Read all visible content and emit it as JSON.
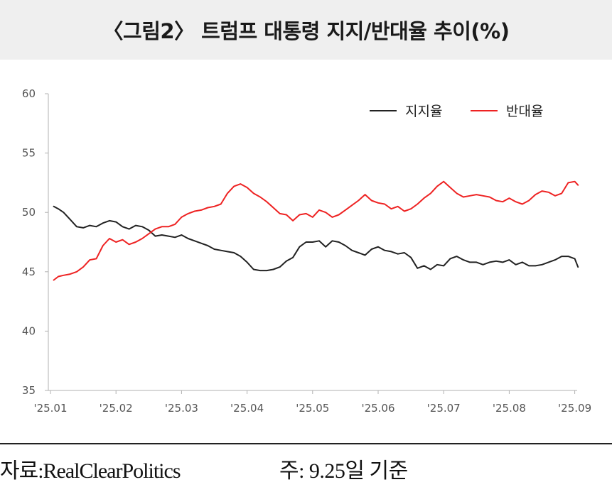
{
  "title": "〈그림2〉 트럼프 대통령 지지/반대율 추이(%)",
  "footer": {
    "source": "자료:RealClearPolitics",
    "note": "주: 9.25일 기준"
  },
  "colors": {
    "approve": "#222222",
    "disapprove": "#ee2222",
    "axis": "#b0b0b0",
    "tick_text": "#555555"
  },
  "chart_data": {
    "type": "line",
    "title": "",
    "xlabel": "",
    "ylabel": "",
    "ylim": [
      35,
      60
    ],
    "yticks": [
      35,
      40,
      45,
      50,
      55,
      60
    ],
    "xticks": [
      "'25.01",
      "'25.02",
      "'25.03",
      "'25.04",
      "'25.05",
      "'25.06",
      "'25.07",
      "'25.08",
      "'25.09"
    ],
    "xlim": [
      0,
      8.05
    ],
    "grid": false,
    "legend_position": "top-right",
    "series": [
      {
        "name": "지지율",
        "color": "#222222",
        "points": [
          [
            0.05,
            50.5
          ],
          [
            0.12,
            50.3
          ],
          [
            0.2,
            50.0
          ],
          [
            0.3,
            49.4
          ],
          [
            0.4,
            48.8
          ],
          [
            0.5,
            48.7
          ],
          [
            0.6,
            48.9
          ],
          [
            0.7,
            48.8
          ],
          [
            0.8,
            49.1
          ],
          [
            0.9,
            49.3
          ],
          [
            1.0,
            49.2
          ],
          [
            1.1,
            48.8
          ],
          [
            1.2,
            48.6
          ],
          [
            1.3,
            48.9
          ],
          [
            1.4,
            48.8
          ],
          [
            1.5,
            48.5
          ],
          [
            1.6,
            48.0
          ],
          [
            1.7,
            48.1
          ],
          [
            1.8,
            48.0
          ],
          [
            1.9,
            47.9
          ],
          [
            2.0,
            48.1
          ],
          [
            2.1,
            47.8
          ],
          [
            2.2,
            47.6
          ],
          [
            2.3,
            47.4
          ],
          [
            2.4,
            47.2
          ],
          [
            2.5,
            46.9
          ],
          [
            2.6,
            46.8
          ],
          [
            2.7,
            46.7
          ],
          [
            2.8,
            46.6
          ],
          [
            2.9,
            46.3
          ],
          [
            3.0,
            45.8
          ],
          [
            3.1,
            45.2
          ],
          [
            3.2,
            45.1
          ],
          [
            3.3,
            45.1
          ],
          [
            3.4,
            45.2
          ],
          [
            3.5,
            45.4
          ],
          [
            3.6,
            45.9
          ],
          [
            3.7,
            46.2
          ],
          [
            3.8,
            47.1
          ],
          [
            3.9,
            47.5
          ],
          [
            4.0,
            47.5
          ],
          [
            4.1,
            47.6
          ],
          [
            4.2,
            47.1
          ],
          [
            4.3,
            47.6
          ],
          [
            4.4,
            47.5
          ],
          [
            4.5,
            47.2
          ],
          [
            4.6,
            46.8
          ],
          [
            4.7,
            46.6
          ],
          [
            4.8,
            46.4
          ],
          [
            4.9,
            46.9
          ],
          [
            5.0,
            47.1
          ],
          [
            5.1,
            46.8
          ],
          [
            5.2,
            46.7
          ],
          [
            5.3,
            46.5
          ],
          [
            5.4,
            46.6
          ],
          [
            5.5,
            46.2
          ],
          [
            5.6,
            45.3
          ],
          [
            5.7,
            45.5
          ],
          [
            5.8,
            45.2
          ],
          [
            5.9,
            45.6
          ],
          [
            6.0,
            45.5
          ],
          [
            6.1,
            46.1
          ],
          [
            6.2,
            46.3
          ],
          [
            6.3,
            46.0
          ],
          [
            6.4,
            45.8
          ],
          [
            6.5,
            45.8
          ],
          [
            6.6,
            45.6
          ],
          [
            6.7,
            45.8
          ],
          [
            6.8,
            45.9
          ],
          [
            6.9,
            45.8
          ],
          [
            7.0,
            46.0
          ],
          [
            7.1,
            45.6
          ],
          [
            7.2,
            45.8
          ],
          [
            7.3,
            45.5
          ],
          [
            7.4,
            45.5
          ],
          [
            7.5,
            45.6
          ],
          [
            7.6,
            45.8
          ],
          [
            7.7,
            46.0
          ],
          [
            7.8,
            46.3
          ],
          [
            7.9,
            46.3
          ],
          [
            8.0,
            46.1
          ],
          [
            8.05,
            45.4
          ]
        ]
      },
      {
        "name": "반대율",
        "color": "#ee2222",
        "points": [
          [
            0.05,
            44.3
          ],
          [
            0.12,
            44.6
          ],
          [
            0.2,
            44.7
          ],
          [
            0.3,
            44.8
          ],
          [
            0.4,
            45.0
          ],
          [
            0.5,
            45.4
          ],
          [
            0.6,
            46.0
          ],
          [
            0.7,
            46.1
          ],
          [
            0.8,
            47.2
          ],
          [
            0.9,
            47.8
          ],
          [
            1.0,
            47.5
          ],
          [
            1.1,
            47.7
          ],
          [
            1.2,
            47.3
          ],
          [
            1.3,
            47.5
          ],
          [
            1.4,
            47.8
          ],
          [
            1.5,
            48.2
          ],
          [
            1.6,
            48.6
          ],
          [
            1.7,
            48.8
          ],
          [
            1.8,
            48.8
          ],
          [
            1.9,
            49.0
          ],
          [
            2.0,
            49.6
          ],
          [
            2.1,
            49.9
          ],
          [
            2.2,
            50.1
          ],
          [
            2.3,
            50.2
          ],
          [
            2.4,
            50.4
          ],
          [
            2.5,
            50.5
          ],
          [
            2.6,
            50.7
          ],
          [
            2.7,
            51.6
          ],
          [
            2.8,
            52.2
          ],
          [
            2.9,
            52.4
          ],
          [
            3.0,
            52.1
          ],
          [
            3.1,
            51.6
          ],
          [
            3.2,
            51.3
          ],
          [
            3.3,
            50.9
          ],
          [
            3.4,
            50.4
          ],
          [
            3.5,
            49.9
          ],
          [
            3.6,
            49.8
          ],
          [
            3.7,
            49.3
          ],
          [
            3.8,
            49.8
          ],
          [
            3.9,
            49.9
          ],
          [
            4.0,
            49.6
          ],
          [
            4.1,
            50.2
          ],
          [
            4.2,
            50.0
          ],
          [
            4.3,
            49.6
          ],
          [
            4.4,
            49.8
          ],
          [
            4.5,
            50.2
          ],
          [
            4.6,
            50.6
          ],
          [
            4.7,
            51.0
          ],
          [
            4.8,
            51.5
          ],
          [
            4.9,
            51.0
          ],
          [
            5.0,
            50.8
          ],
          [
            5.1,
            50.7
          ],
          [
            5.2,
            50.3
          ],
          [
            5.3,
            50.5
          ],
          [
            5.4,
            50.1
          ],
          [
            5.5,
            50.3
          ],
          [
            5.6,
            50.7
          ],
          [
            5.7,
            51.2
          ],
          [
            5.8,
            51.6
          ],
          [
            5.9,
            52.2
          ],
          [
            6.0,
            52.6
          ],
          [
            6.1,
            52.1
          ],
          [
            6.2,
            51.6
          ],
          [
            6.3,
            51.3
          ],
          [
            6.4,
            51.4
          ],
          [
            6.5,
            51.5
          ],
          [
            6.6,
            51.4
          ],
          [
            6.7,
            51.3
          ],
          [
            6.8,
            51.0
          ],
          [
            6.9,
            50.9
          ],
          [
            7.0,
            51.2
          ],
          [
            7.1,
            50.9
          ],
          [
            7.2,
            50.7
          ],
          [
            7.3,
            51.0
          ],
          [
            7.4,
            51.5
          ],
          [
            7.5,
            51.8
          ],
          [
            7.6,
            51.7
          ],
          [
            7.7,
            51.4
          ],
          [
            7.8,
            51.6
          ],
          [
            7.9,
            52.5
          ],
          [
            8.0,
            52.6
          ],
          [
            8.05,
            52.3
          ]
        ]
      }
    ]
  }
}
